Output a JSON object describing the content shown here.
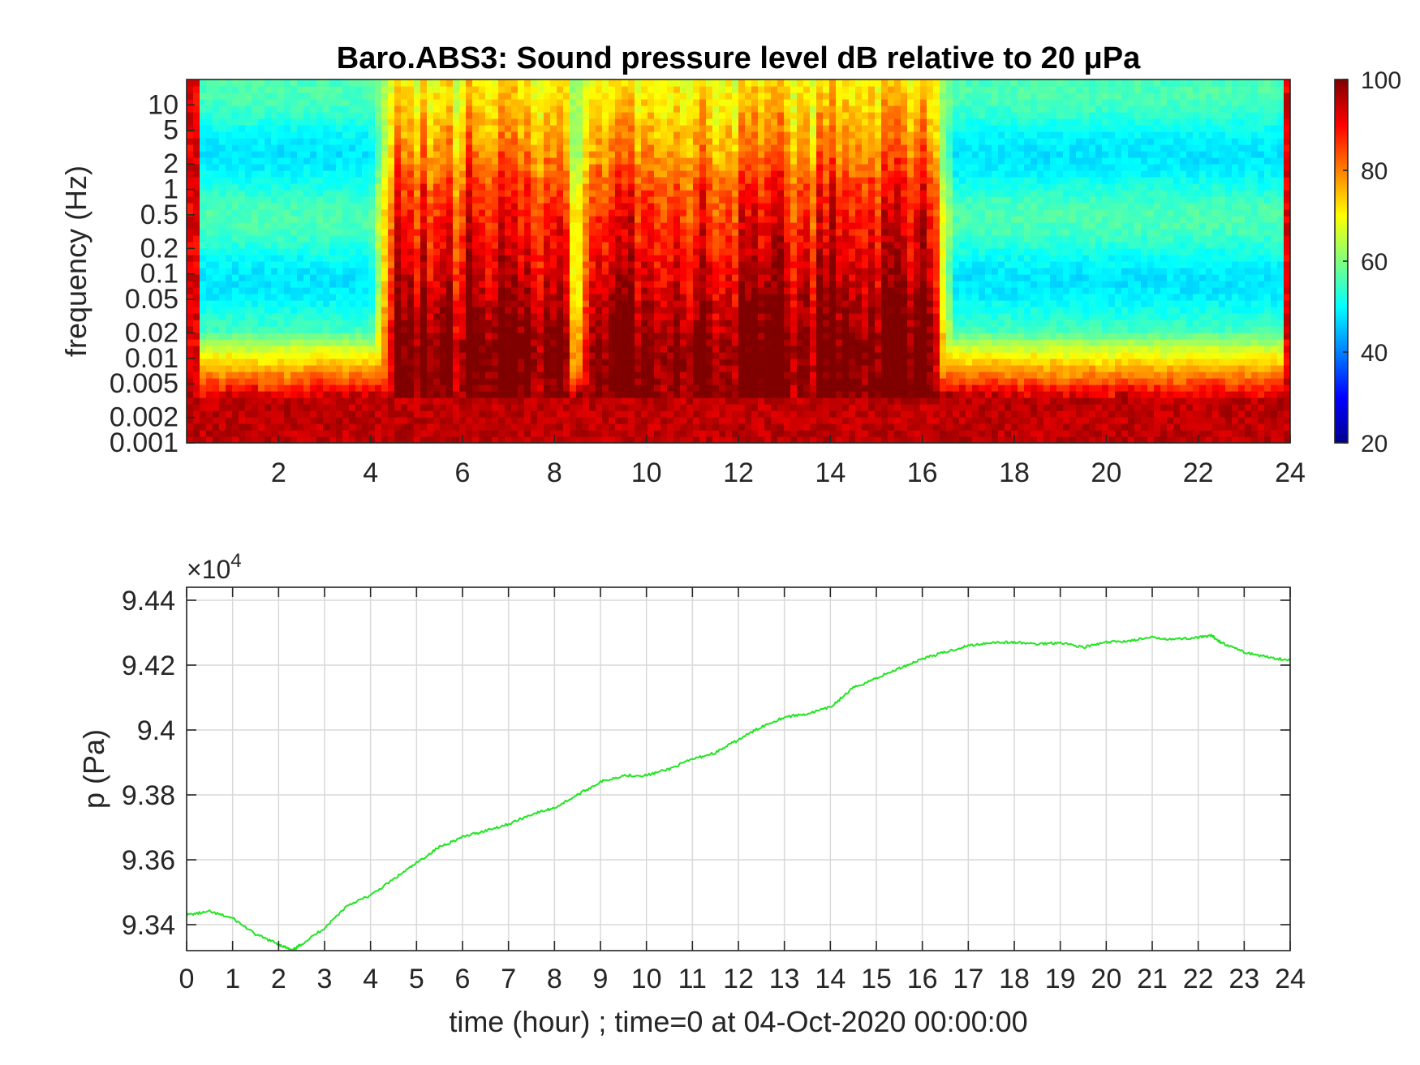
{
  "chart_data": [
    {
      "type": "heatmap",
      "title": "Baro.ABS3: Sound pressure level dB relative to 20 μPa",
      "xlabel": "",
      "ylabel": "frequency (Hz)",
      "xlim": [
        0,
        24
      ],
      "x_ticks": [
        "2",
        "4",
        "6",
        "8",
        "10",
        "12",
        "14",
        "16",
        "18",
        "20",
        "22",
        "24"
      ],
      "x_tick_values": [
        2,
        4,
        6,
        8,
        10,
        12,
        14,
        16,
        18,
        20,
        22,
        24
      ],
      "y_scale": "log",
      "ylim": [
        0.001,
        20
      ],
      "y_ticks": [
        "0.001",
        "0.002",
        "0.005",
        "0.01",
        "0.02",
        "0.05",
        "0.1",
        "0.2",
        "0.5",
        "1",
        "2",
        "5",
        "10"
      ],
      "y_tick_values": [
        0.001,
        0.002,
        0.005,
        0.01,
        0.02,
        0.05,
        0.1,
        0.2,
        0.5,
        1,
        2,
        5,
        10
      ],
      "colormap": "jet",
      "color_range": [
        20,
        100
      ],
      "colorbar_ticks": [
        "20",
        "40",
        "60",
        "80",
        "100"
      ],
      "colorbar_values": [
        20,
        40,
        60,
        80,
        100
      ],
      "grid": false,
      "high_activity_hours": [
        [
          4.5,
          8.2
        ],
        [
          8.8,
          16.2
        ]
      ],
      "low_frequency_band_level_db": 92,
      "high_frequency_background_db": 50
    },
    {
      "type": "line",
      "title": "",
      "xlabel": "time (hour) ; time=0 at 04-Oct-2020 00:00:00",
      "ylabel": "p (Pa)",
      "y_multiplier_label": "×10",
      "y_multiplier_exponent": "4",
      "xlim": [
        0,
        24
      ],
      "ylim": [
        93320,
        94440
      ],
      "x_ticks": [
        "0",
        "1",
        "2",
        "3",
        "4",
        "5",
        "6",
        "7",
        "8",
        "9",
        "10",
        "11",
        "12",
        "13",
        "14",
        "15",
        "16",
        "17",
        "18",
        "19",
        "20",
        "21",
        "22",
        "23",
        "24"
      ],
      "x_tick_values": [
        0,
        1,
        2,
        3,
        4,
        5,
        6,
        7,
        8,
        9,
        10,
        11,
        12,
        13,
        14,
        15,
        16,
        17,
        18,
        19,
        20,
        21,
        22,
        23,
        24
      ],
      "y_ticks": [
        "9.34",
        "9.36",
        "9.38",
        "9.4",
        "9.42",
        "9.44"
      ],
      "y_tick_values": [
        93400,
        93600,
        93800,
        94000,
        94200,
        94400
      ],
      "grid": true,
      "line_color": "#22e522",
      "series": [
        {
          "x": [
            0,
            0.5,
            1,
            1.5,
            2,
            2.3,
            2.5,
            3,
            3.5,
            4,
            4.5,
            5,
            5.5,
            6,
            6.5,
            7,
            7.5,
            8,
            8.5,
            9,
            9.5,
            10,
            10.5,
            11,
            11.5,
            12,
            12.5,
            13,
            13.5,
            14,
            14.5,
            15,
            15.5,
            16,
            16.5,
            17,
            17.5,
            18,
            18.5,
            19,
            19.5,
            20,
            20.5,
            21,
            21.5,
            22,
            22.3,
            22.5,
            23,
            23.5,
            24
          ],
          "y": [
            93430,
            93440,
            93420,
            93370,
            93340,
            93320,
            93340,
            93390,
            93460,
            93490,
            93540,
            93590,
            93640,
            93670,
            93690,
            93710,
            93740,
            93760,
            93800,
            93840,
            93860,
            93860,
            93880,
            93910,
            93930,
            93970,
            94010,
            94040,
            94050,
            94070,
            94130,
            94160,
            94190,
            94220,
            94240,
            94260,
            94270,
            94270,
            94265,
            94270,
            94255,
            94270,
            94275,
            94285,
            94280,
            94285,
            94290,
            94270,
            94240,
            94225,
            94215
          ]
        }
      ]
    }
  ]
}
